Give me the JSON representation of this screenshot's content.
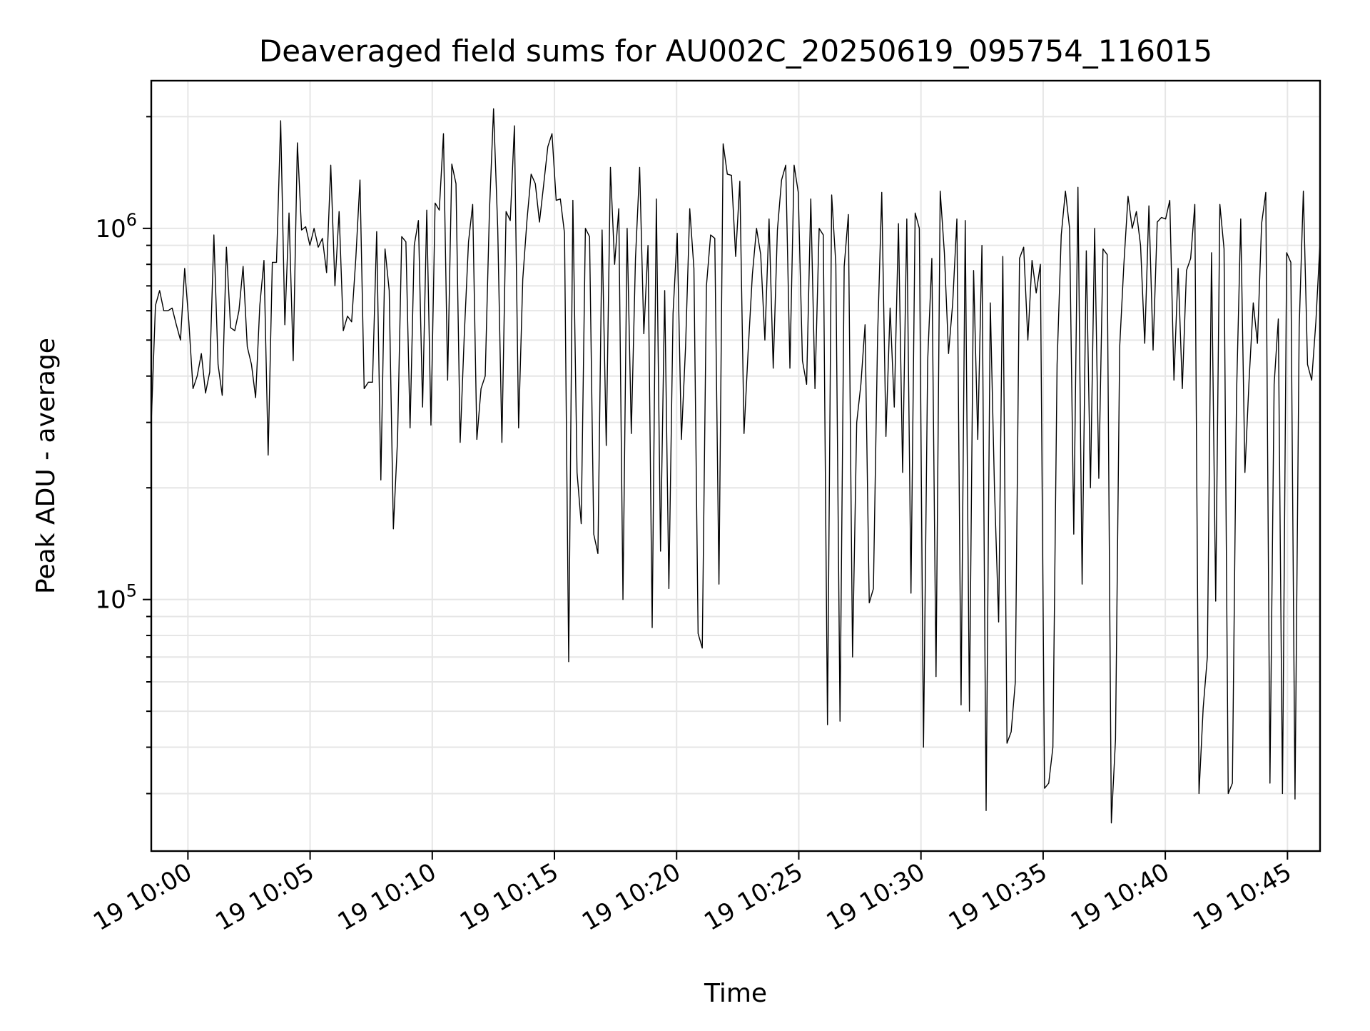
{
  "chart_data": {
    "type": "line",
    "title": "Deaveraged field sums for AU002C_20250619_095754_116015",
    "xlabel": "Time",
    "ylabel": "Peak ADU - average",
    "y_scale": "log",
    "ylim": [
      21000,
      2500000
    ],
    "xlim": [
      "19 09:58:30",
      "19 10:46:20"
    ],
    "x_ticks": [
      {
        "t": "19 10:00:00",
        "label": "19 10:00"
      },
      {
        "t": "19 10:05:00",
        "label": "19 10:05"
      },
      {
        "t": "19 10:10:00",
        "label": "19 10:10"
      },
      {
        "t": "19 10:15:00",
        "label": "19 10:15"
      },
      {
        "t": "19 10:20:00",
        "label": "19 10:20"
      },
      {
        "t": "19 10:25:00",
        "label": "19 10:25"
      },
      {
        "t": "19 10:30:00",
        "label": "19 10:30"
      },
      {
        "t": "19 10:35:00",
        "label": "19 10:35"
      },
      {
        "t": "19 10:40:00",
        "label": "19 10:40"
      },
      {
        "t": "19 10:45:00",
        "label": "19 10:45"
      }
    ],
    "y_ticks": [
      {
        "value": 100000,
        "base": "10",
        "exp": "5"
      },
      {
        "value": 1000000,
        "base": "10",
        "exp": "6"
      }
    ],
    "grid": true,
    "line_color": "#000000",
    "series": [
      {
        "values": [
          300000,
          620000,
          680000,
          600000,
          600000,
          610000,
          550000,
          500000,
          780000,
          560000,
          370000,
          400000,
          460000,
          360000,
          410000,
          960000,
          430000,
          355000,
          890000,
          540000,
          530000,
          600000,
          790000,
          480000,
          430000,
          350000,
          620000,
          820000,
          245000,
          810000,
          810000,
          1950000,
          550000,
          1100000,
          440000,
          1700000,
          990000,
          1010000,
          900000,
          1000000,
          890000,
          940000,
          760000,
          1480000,
          700000,
          1110000,
          530000,
          580000,
          560000,
          830000,
          1350000,
          370000,
          385000,
          385000,
          980000,
          210000,
          880000,
          680000,
          155000,
          270000,
          950000,
          920000,
          290000,
          900000,
          1050000,
          330000,
          1120000,
          295000,
          1170000,
          1120000,
          1800000,
          390000,
          1490000,
          1320000,
          265000,
          520000,
          920000,
          1160000,
          270000,
          370000,
          400000,
          1100000,
          2100000,
          1000000,
          265000,
          1110000,
          1050000,
          1890000,
          290000,
          730000,
          1050000,
          1400000,
          1320000,
          1040000,
          1310000,
          1660000,
          1800000,
          1190000,
          1200000,
          970000,
          68000,
          1190000,
          220000,
          160000,
          1000000,
          950000,
          150000,
          133000,
          990000,
          260000,
          1460000,
          800000,
          1130000,
          100000,
          1000000,
          280000,
          830000,
          1460000,
          520000,
          900000,
          84000,
          1200000,
          135000,
          680000,
          107000,
          590000,
          970000,
          270000,
          480000,
          1130000,
          780000,
          81000,
          74000,
          700000,
          960000,
          940000,
          110000,
          1690000,
          1400000,
          1390000,
          840000,
          1340000,
          280000,
          470000,
          750000,
          1000000,
          850000,
          500000,
          1060000,
          420000,
          990000,
          1350000,
          1480000,
          420000,
          1480000,
          1250000,
          440000,
          380000,
          1200000,
          370000,
          1000000,
          960000,
          46000,
          1230000,
          800000,
          47000,
          790000,
          1090000,
          70000,
          300000,
          380000,
          550000,
          98000,
          107000,
          510000,
          1250000,
          275000,
          610000,
          330000,
          1030000,
          220000,
          1060000,
          104000,
          1100000,
          1000000,
          40000,
          440000,
          830000,
          62000,
          1260000,
          860000,
          460000,
          630000,
          1060000,
          52000,
          1050000,
          50000,
          770000,
          270000,
          900000,
          27000,
          630000,
          200000,
          87000,
          840000,
          41000,
          44000,
          60000,
          830000,
          890000,
          500000,
          820000,
          670000,
          800000,
          31000,
          32000,
          40000,
          430000,
          960000,
          1260000,
          1000000,
          150000,
          1290000,
          110000,
          870000,
          200000,
          1000000,
          212000,
          880000,
          850000,
          25000,
          42000,
          480000,
          800000,
          1220000,
          1000000,
          1110000,
          900000,
          490000,
          1150000,
          470000,
          1040000,
          1070000,
          1060000,
          1190000,
          390000,
          780000,
          370000,
          770000,
          830000,
          1160000,
          30000,
          51000,
          70000,
          860000,
          99000,
          1160000,
          880000,
          30000,
          32000,
          360000,
          1060000,
          220000,
          390000,
          630000,
          490000,
          1030000,
          1250000,
          32000,
          380000,
          570000,
          30000,
          860000,
          810000,
          29000,
          540000,
          1260000,
          430000,
          390000,
          560000,
          920000
        ]
      }
    ]
  }
}
